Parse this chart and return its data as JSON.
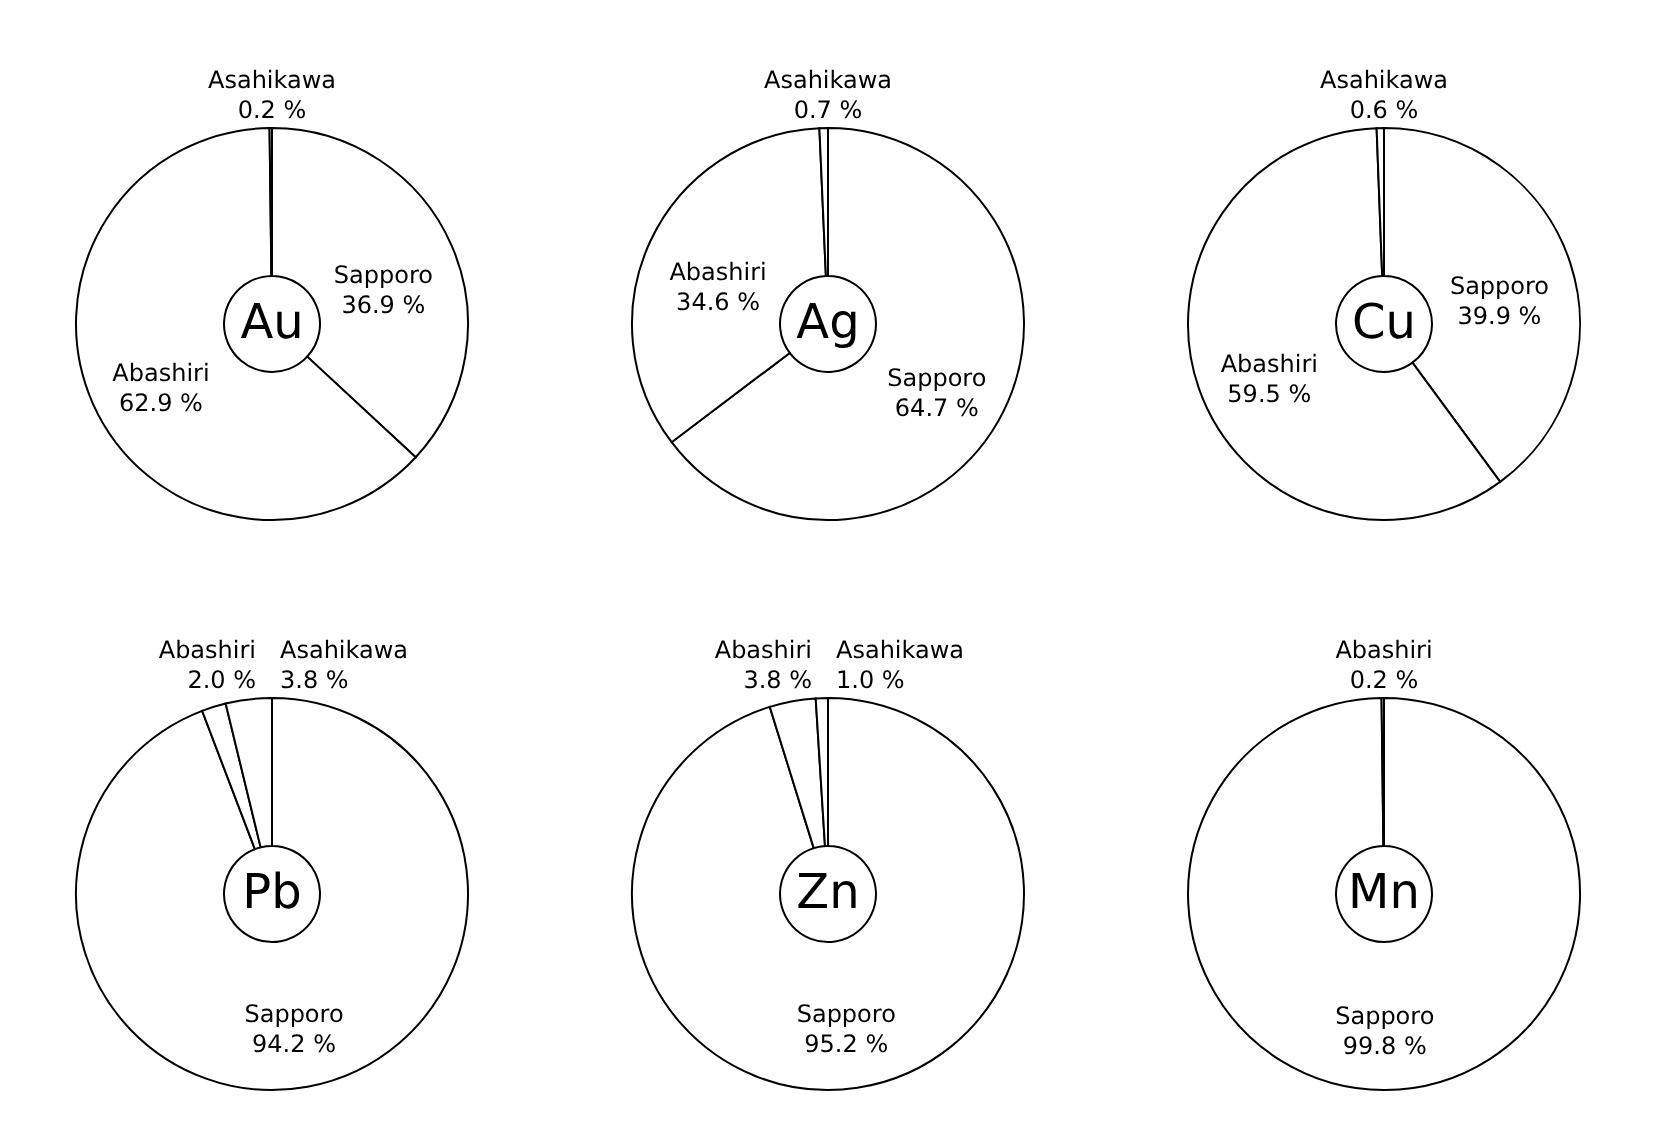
{
  "chart_data": [
    {
      "type": "donut",
      "title": "Au",
      "categories": [
        "Sapporo",
        "Abashiri",
        "Asahikawa"
      ],
      "values": [
        36.9,
        62.9,
        0.2
      ],
      "colors": [
        "#ffffff",
        "#ffffff",
        "#ffffff"
      ],
      "value_labels": [
        "36.9 %",
        "62.9 %",
        "0.2 %"
      ]
    },
    {
      "type": "donut",
      "title": "Ag",
      "categories": [
        "Sapporo",
        "Abashiri",
        "Asahikawa"
      ],
      "values": [
        64.7,
        34.6,
        0.7
      ],
      "colors": [
        "#ffffff",
        "#ffffff",
        "#ffffff"
      ],
      "value_labels": [
        "64.7 %",
        "34.6 %",
        "0.7 %"
      ]
    },
    {
      "type": "donut",
      "title": "Cu",
      "categories": [
        "Sapporo",
        "Abashiri",
        "Asahikawa"
      ],
      "values": [
        39.9,
        59.5,
        0.6
      ],
      "colors": [
        "#ffffff",
        "#ffffff",
        "#ffffff"
      ],
      "value_labels": [
        "39.9 %",
        "59.5 %",
        "0.6 %"
      ]
    },
    {
      "type": "donut",
      "title": "Pb",
      "categories": [
        "Sapporo",
        "Abashiri",
        "Asahikawa"
      ],
      "values": [
        94.2,
        2.0,
        3.8
      ],
      "colors": [
        "#ffffff",
        "#ffffff",
        "#ffffff"
      ],
      "value_labels": [
        "94.2 %",
        "2.0 %",
        "3.8 %"
      ]
    },
    {
      "type": "donut",
      "title": "Zn",
      "categories": [
        "Sapporo",
        "Abashiri",
        "Asahikawa"
      ],
      "values": [
        95.2,
        3.8,
        1.0
      ],
      "colors": [
        "#ffffff",
        "#ffffff",
        "#ffffff"
      ],
      "value_labels": [
        "95.2 %",
        "3.8 %",
        "1.0 %"
      ]
    },
    {
      "type": "donut",
      "title": "Mn",
      "categories": [
        "Sapporo",
        "Abashiri"
      ],
      "values": [
        99.8,
        0.2
      ],
      "colors": [
        "#ffffff",
        "#ffffff"
      ],
      "value_labels": [
        "99.8 %",
        "0.2 %"
      ]
    }
  ]
}
